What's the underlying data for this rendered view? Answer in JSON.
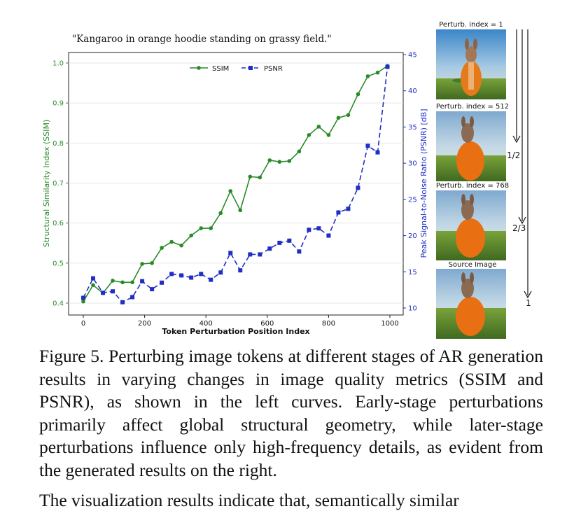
{
  "chart_data": {
    "type": "line",
    "title": "\"Kangaroo in orange hoodie standing on grassy field.\"",
    "xlabel": "Token Perturbation Position Index",
    "ylabel_left": "Structural Similarity Index (SSIM)",
    "ylabel_right": "Peak Signal-to-Noise Ratio (PSNR) [dB]",
    "xlim": [
      0,
      1000
    ],
    "ylim_left": [
      0.4,
      1.0
    ],
    "ylim_right": [
      10,
      45
    ],
    "xticks": [
      0,
      200,
      400,
      600,
      800,
      1000
    ],
    "yticks_left": [
      "0.4",
      "0.5",
      "0.6",
      "0.7",
      "0.8",
      "0.9",
      "1.0"
    ],
    "yticks_right": [
      "10",
      "15",
      "20",
      "25",
      "30",
      "35",
      "40",
      "45"
    ],
    "grid": true,
    "legend": "top-center",
    "x": [
      0,
      32,
      64,
      96,
      128,
      160,
      192,
      224,
      256,
      288,
      320,
      352,
      384,
      416,
      448,
      480,
      512,
      544,
      576,
      608,
      640,
      672,
      704,
      736,
      768,
      800,
      832,
      864,
      896,
      928,
      960,
      992
    ],
    "series": [
      {
        "name": "SSIM",
        "axis": "left",
        "color": "#2a8a2a",
        "marker": "circle",
        "style": "solid",
        "values": [
          0.404,
          0.445,
          0.425,
          0.456,
          0.452,
          0.452,
          0.498,
          0.5,
          0.538,
          0.553,
          0.544,
          0.569,
          0.587,
          0.587,
          0.625,
          0.68,
          0.632,
          0.716,
          0.714,
          0.757,
          0.753,
          0.755,
          0.779,
          0.82,
          0.841,
          0.82,
          0.863,
          0.87,
          0.922,
          0.967,
          0.976,
          0.993
        ]
      },
      {
        "name": "PSNR",
        "axis": "right",
        "color": "#1f2ec4",
        "marker": "square",
        "style": "dashed",
        "values": [
          11.4,
          14.1,
          12.1,
          12.3,
          10.8,
          11.5,
          13.7,
          12.6,
          13.5,
          14.7,
          14.5,
          14.2,
          14.7,
          13.9,
          14.9,
          17.6,
          15.2,
          17.4,
          17.4,
          18.2,
          19.0,
          19.3,
          17.8,
          20.8,
          21.0,
          20.0,
          23.2,
          23.7,
          26.6,
          32.4,
          31.5,
          43.3
        ]
      }
    ]
  },
  "images": [
    {
      "label": "Perturb. index = 1"
    },
    {
      "label": "Perturb. index = 512"
    },
    {
      "label": "Perturb. index = 768"
    },
    {
      "label": "Source Image"
    }
  ],
  "arrows": [
    {
      "label": ""
    },
    {
      "label": "1/2"
    },
    {
      "label": "2/3"
    },
    {
      "label": "1"
    }
  ],
  "caption": "Figure 5. Perturbing image tokens at different stages of AR generation results in varying changes in image quality metrics (SSIM and PSNR), as shown in the left curves. Early-stage perturbations primarily affect global structural geometry, while later-stage perturbations influence only high-frequency details, as evident from the generated results on the right.",
  "next_text": "The visualization results indicate that, semantically similar"
}
